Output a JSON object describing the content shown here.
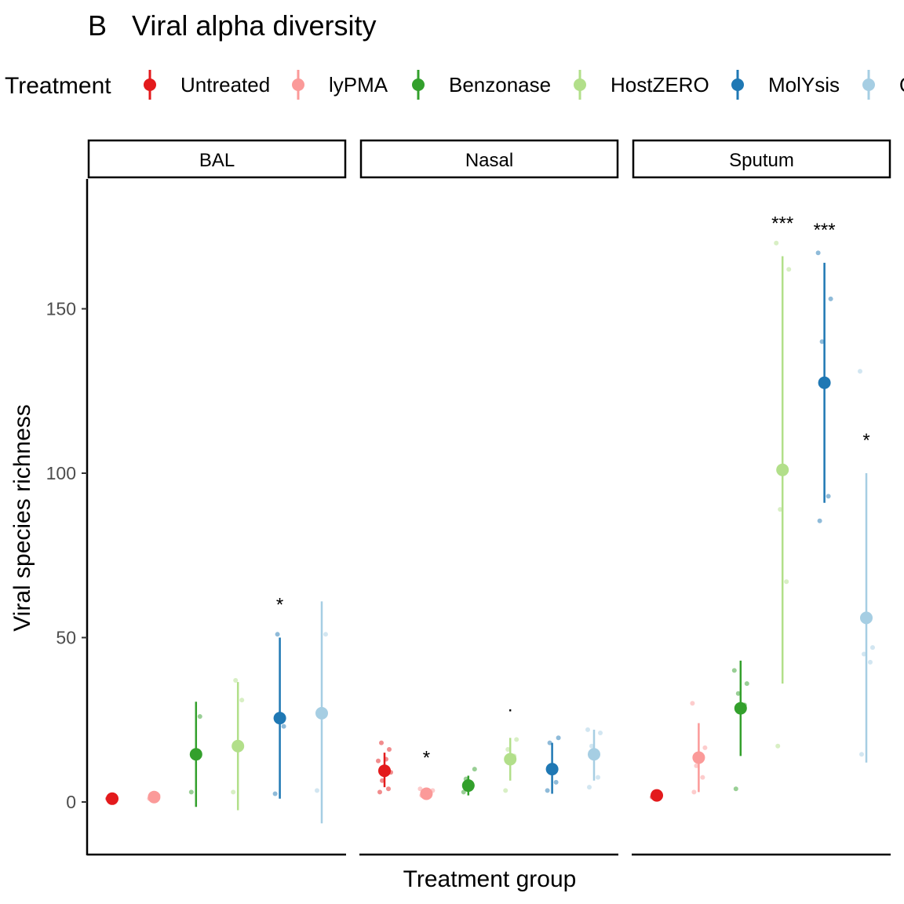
{
  "panel_tag": "B",
  "title": "Viral alpha diversity",
  "legend": {
    "title": "Treatment",
    "items": [
      {
        "label": "Untreated",
        "color": "#E31A1C"
      },
      {
        "label": "lyPMA",
        "color": "#FB9A99"
      },
      {
        "label": "Benzonase",
        "color": "#33A02C"
      },
      {
        "label": "HostZERO",
        "color": "#B2DF8A"
      },
      {
        "label": "MolYsis",
        "color": "#1F78B4"
      },
      {
        "label": "Q",
        "color": "#A6CEE3"
      }
    ]
  },
  "chart_data": {
    "type": "scatter",
    "title": "Viral alpha diversity",
    "xlabel": "Treatment group",
    "ylabel": "Viral species richness",
    "ylim": [
      -16,
      188
    ],
    "yticks": [
      0,
      50,
      100,
      150
    ],
    "grid": false,
    "legend_position": "top",
    "facets": [
      {
        "label": "BAL",
        "groups": [
          {
            "treatment": "Untreated",
            "mean": 1,
            "lo": 1,
            "hi": 1,
            "points": [
              1,
              1
            ],
            "annotation": ""
          },
          {
            "treatment": "lyPMA",
            "mean": 1.5,
            "lo": 1.5,
            "hi": 1.5,
            "points": [
              1,
              2
            ],
            "annotation": ""
          },
          {
            "treatment": "Benzonase",
            "mean": 14.5,
            "lo": -1.5,
            "hi": 30.5,
            "points": [
              3,
              26
            ],
            "annotation": ""
          },
          {
            "treatment": "HostZERO",
            "mean": 17,
            "lo": -2.5,
            "hi": 36.5,
            "points": [
              3,
              31,
              37
            ],
            "annotation": ""
          },
          {
            "treatment": "MolYsis",
            "mean": 25.5,
            "lo": 1,
            "hi": 50,
            "points": [
              2.5,
              23,
              51
            ],
            "annotation": "*"
          },
          {
            "treatment": "Q",
            "mean": 27,
            "lo": -6.5,
            "hi": 61,
            "points": [
              3.5,
              51
            ],
            "annotation": ""
          }
        ]
      },
      {
        "label": "Nasal",
        "groups": [
          {
            "treatment": "Untreated",
            "mean": 9.5,
            "lo": 4.5,
            "hi": 15,
            "points": [
              3,
              4,
              6.5,
              9,
              12.5,
              13,
              16,
              18
            ],
            "annotation": ""
          },
          {
            "treatment": "lyPMA",
            "mean": 2.5,
            "lo": 1.5,
            "hi": 3.5,
            "points": [
              2,
              2.5,
              3,
              3.5,
              4
            ],
            "annotation": "*"
          },
          {
            "treatment": "Benzonase",
            "mean": 5,
            "lo": 2,
            "hi": 8,
            "points": [
              3,
              5,
              7,
              10
            ],
            "annotation": ""
          },
          {
            "treatment": "HostZERO",
            "mean": 13,
            "lo": 6.5,
            "hi": 19.5,
            "points": [
              3.5,
              14,
              16,
              19
            ],
            "annotation": "."
          },
          {
            "treatment": "MolYsis",
            "mean": 10,
            "lo": 2.5,
            "hi": 18,
            "points": [
              3.5,
              6,
              18,
              19.5
            ],
            "annotation": ""
          },
          {
            "treatment": "Q",
            "mean": 14.5,
            "lo": 6.5,
            "hi": 22,
            "points": [
              4.5,
              7.5,
              17,
              21,
              22
            ],
            "annotation": ""
          }
        ]
      },
      {
        "label": "Sputum",
        "groups": [
          {
            "treatment": "Untreated",
            "mean": 2,
            "lo": 2,
            "hi": 2,
            "points": [
              1.5,
              2,
              3
            ],
            "annotation": ""
          },
          {
            "treatment": "lyPMA",
            "mean": 13.5,
            "lo": 3,
            "hi": 24,
            "points": [
              3,
              7.5,
              11,
              16.5,
              30
            ],
            "annotation": ""
          },
          {
            "treatment": "Benzonase",
            "mean": 28.5,
            "lo": 14,
            "hi": 43,
            "points": [
              4,
              29.5,
              33,
              36,
              40
            ],
            "annotation": ""
          },
          {
            "treatment": "HostZERO",
            "mean": 101,
            "lo": 36,
            "hi": 166,
            "points": [
              17,
              67,
              89,
              162,
              170
            ],
            "annotation": "***"
          },
          {
            "treatment": "MolYsis",
            "mean": 127.5,
            "lo": 91,
            "hi": 164,
            "points": [
              85.5,
              93,
              140,
              153,
              167
            ],
            "annotation": "***"
          },
          {
            "treatment": "Q",
            "mean": 56,
            "lo": 12,
            "hi": 100,
            "points": [
              14.5,
              42.5,
              45,
              47,
              131
            ],
            "annotation": "*"
          }
        ]
      }
    ]
  }
}
